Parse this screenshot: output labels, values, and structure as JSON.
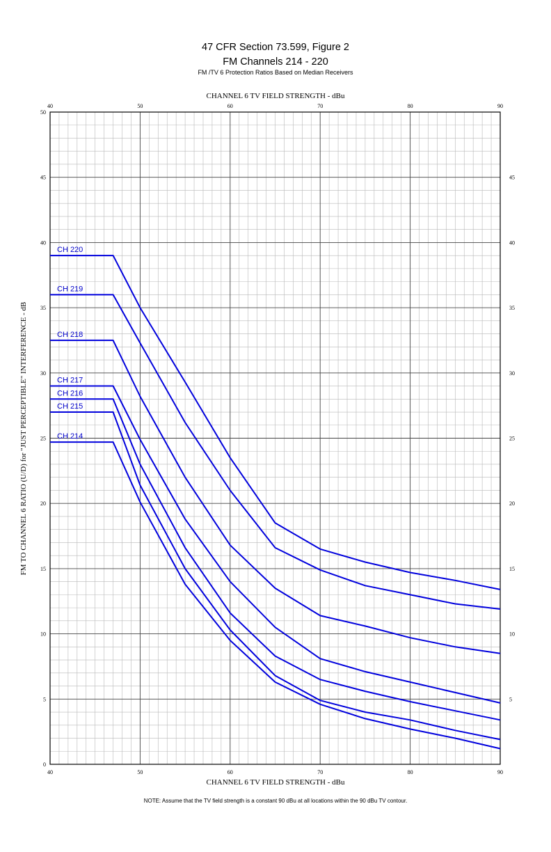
{
  "header": {
    "title": "47 CFR Section 73.599, Figure 2",
    "subtitle": "FM Channels 214 - 220",
    "caption": "FM /TV 6 Protection Ratios Based on Median Receivers"
  },
  "note": "NOTE: Assume that the TV field strength is a constant 90 dBu at all locations within the 90 dBu TV contour.",
  "chart_data": {
    "type": "line",
    "title": "47 CFR Section 73.599, Figure 2",
    "xlabel": "CHANNEL 6 TV FIELD STRENGTH - dBu",
    "ylabel": "FM TO CHANNEL 6 RATIO (U/D) for \"JUST PERCEPTIBLE\" INTERFERENCE - dB",
    "xlim": [
      40,
      90
    ],
    "ylim": [
      0,
      50
    ],
    "x_ticks": [
      40,
      50,
      60,
      70,
      80,
      90
    ],
    "y_ticks": [
      0,
      5,
      10,
      15,
      20,
      25,
      30,
      35,
      40,
      45,
      50
    ],
    "grid": true,
    "line_color": "#0000dd",
    "series": [
      {
        "name": "CH 220",
        "x": [
          40,
          47,
          50,
          55,
          60,
          65,
          70,
          75,
          80,
          85,
          90
        ],
        "y": [
          39.0,
          39.0,
          35.0,
          29.3,
          23.5,
          18.5,
          16.5,
          15.5,
          14.7,
          14.1,
          13.4
        ]
      },
      {
        "name": "CH 219",
        "x": [
          40,
          47,
          50,
          55,
          60,
          65,
          70,
          75,
          80,
          85,
          90
        ],
        "y": [
          36.0,
          36.0,
          32.3,
          26.2,
          21.0,
          16.6,
          14.9,
          13.7,
          13.0,
          12.3,
          11.9
        ]
      },
      {
        "name": "CH 218",
        "x": [
          40,
          47,
          50,
          55,
          60,
          65,
          70,
          75,
          80,
          85,
          90
        ],
        "y": [
          32.5,
          32.5,
          28.2,
          22.0,
          16.8,
          13.5,
          11.4,
          10.6,
          9.7,
          9.0,
          8.5
        ]
      },
      {
        "name": "CH 217",
        "x": [
          40,
          47,
          50,
          55,
          60,
          65,
          70,
          75,
          80,
          85,
          90
        ],
        "y": [
          29.0,
          29.0,
          24.9,
          18.8,
          14.0,
          10.5,
          8.1,
          7.1,
          6.3,
          5.5,
          4.7
        ]
      },
      {
        "name": "CH 216",
        "x": [
          40,
          47,
          50,
          55,
          60,
          65,
          70,
          75,
          80,
          85,
          90
        ],
        "y": [
          28.0,
          28.0,
          23.0,
          16.6,
          11.6,
          8.3,
          6.5,
          5.6,
          4.8,
          4.1,
          3.4
        ]
      },
      {
        "name": "CH 215",
        "x": [
          40,
          47,
          50,
          55,
          60,
          65,
          70,
          75,
          80,
          85,
          90
        ],
        "y": [
          27.0,
          27.0,
          21.4,
          15.0,
          10.3,
          6.8,
          4.9,
          4.0,
          3.4,
          2.6,
          1.9
        ]
      },
      {
        "name": "CH 214",
        "x": [
          40,
          47,
          50,
          55,
          60,
          65,
          70,
          75,
          80,
          85,
          90
        ],
        "y": [
          24.7,
          24.7,
          20.1,
          13.8,
          9.5,
          6.3,
          4.6,
          3.5,
          2.7,
          2.0,
          1.2
        ]
      }
    ]
  }
}
